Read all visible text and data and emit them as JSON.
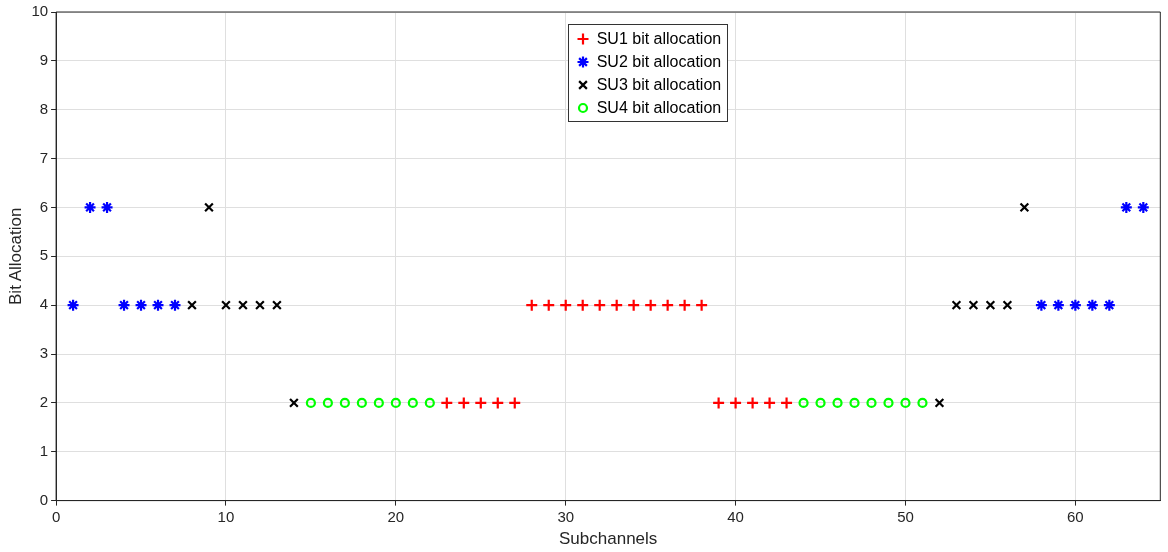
{
  "chart_data": {
    "type": "scatter",
    "xlabel": "Subchannels",
    "ylabel": "Bit Allocation",
    "xlim": [
      0,
      65
    ],
    "xticks": [
      0,
      10,
      20,
      30,
      40,
      50,
      60
    ],
    "ylim": [
      0,
      10
    ],
    "yticks": [
      0,
      1,
      2,
      3,
      4,
      5,
      6,
      7,
      8,
      9,
      10
    ],
    "grid": true,
    "legend": "top",
    "series": [
      {
        "name": "SU1 bit allocation",
        "color": "#ff0000",
        "marker": "cross",
        "x": [
          23,
          24,
          25,
          26,
          27,
          28,
          29,
          30,
          31,
          32,
          33,
          34,
          35,
          36,
          37,
          38,
          39,
          40,
          41,
          42,
          43
        ],
        "values": [
          2,
          2,
          2,
          2,
          2,
          4,
          4,
          4,
          4,
          4,
          4,
          4,
          4,
          4,
          4,
          4,
          2,
          2,
          2,
          2,
          2
        ]
      },
      {
        "name": "SU2 bit allocation",
        "color": "#0000ff",
        "x": [
          1,
          2,
          3,
          4,
          5,
          6,
          7,
          58,
          59,
          60,
          61,
          62,
          63,
          64
        ],
        "values": [
          4,
          6,
          6,
          4,
          4,
          4,
          4,
          4,
          4,
          4,
          4,
          4,
          6,
          6
        ]
      },
      {
        "name": "SU3 bit allocation",
        "color": "#000000",
        "marker": "x",
        "x": [
          8,
          9,
          10,
          11,
          12,
          13,
          14,
          52,
          53,
          54,
          55,
          56,
          57
        ],
        "values": [
          4,
          6,
          4,
          4,
          4,
          4,
          2,
          2,
          4,
          4,
          4,
          4,
          6
        ]
      },
      {
        "name": "SU4 bit allocation",
        "color": "#00ff00",
        "marker": "circle",
        "x": [
          15,
          16,
          17,
          18,
          19,
          20,
          21,
          22,
          44,
          45,
          46,
          47,
          48,
          49,
          50,
          51
        ],
        "values": [
          2,
          2,
          2,
          2,
          2,
          2,
          2,
          2,
          2,
          2,
          2,
          2,
          2,
          2,
          2,
          2
        ]
      }
    ]
  }
}
